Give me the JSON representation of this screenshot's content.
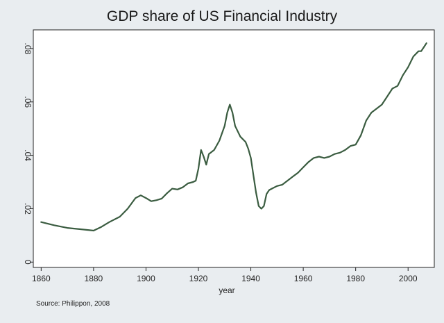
{
  "chart_data": {
    "type": "line",
    "title": "GDP share of US Financial Industry",
    "xlabel": "year",
    "ylabel": "",
    "xlim": [
      1857,
      2010
    ],
    "ylim": [
      -0.002,
      0.087
    ],
    "xticks": [
      1860,
      1880,
      1900,
      1920,
      1940,
      1960,
      1980,
      2000
    ],
    "xtick_labels": [
      "1860",
      "1880",
      "1900",
      "1920",
      "1940",
      "1960",
      "1980",
      "2000"
    ],
    "yticks": [
      0,
      0.02,
      0.04,
      0.06,
      0.08
    ],
    "ytick_labels": [
      "0",
      ".02",
      ".04",
      ".06",
      ".08"
    ],
    "grid": false,
    "line_color": "#3a5c40",
    "series": [
      {
        "x": [
          1860,
          1865,
          1870,
          1875,
          1880,
          1883,
          1886,
          1890,
          1893,
          1896,
          1898,
          1900,
          1902,
          1904,
          1906,
          1908,
          1910,
          1912,
          1914,
          1916,
          1918,
          1919,
          1920,
          1921,
          1922,
          1923,
          1924,
          1926,
          1928,
          1930,
          1931,
          1932,
          1933,
          1934,
          1936,
          1938,
          1939,
          1940,
          1941,
          1942,
          1943,
          1944,
          1945,
          1946,
          1947,
          1948,
          1950,
          1952,
          1954,
          1956,
          1958,
          1960,
          1962,
          1964,
          1966,
          1968,
          1970,
          1972,
          1974,
          1976,
          1978,
          1980,
          1982,
          1984,
          1986,
          1988,
          1990,
          1992,
          1994,
          1996,
          1998,
          2000,
          2002,
          2004,
          2005,
          2006,
          2007
        ],
        "y": [
          0.015,
          0.0138,
          0.0128,
          0.0123,
          0.0118,
          0.0132,
          0.015,
          0.017,
          0.02,
          0.024,
          0.025,
          0.024,
          0.0228,
          0.0232,
          0.0238,
          0.0258,
          0.0275,
          0.0272,
          0.028,
          0.0295,
          0.03,
          0.0305,
          0.035,
          0.042,
          0.0395,
          0.0365,
          0.0405,
          0.042,
          0.0455,
          0.051,
          0.056,
          0.059,
          0.056,
          0.051,
          0.047,
          0.045,
          0.0425,
          0.039,
          0.0325,
          0.026,
          0.021,
          0.02,
          0.021,
          0.0255,
          0.027,
          0.0275,
          0.0285,
          0.029,
          0.0305,
          0.032,
          0.0335,
          0.0355,
          0.0375,
          0.039,
          0.0395,
          0.039,
          0.0395,
          0.0405,
          0.041,
          0.042,
          0.0435,
          0.044,
          0.0475,
          0.053,
          0.056,
          0.0575,
          0.059,
          0.062,
          0.065,
          0.066,
          0.07,
          0.073,
          0.077,
          0.079,
          0.079,
          0.0805,
          0.082
        ]
      }
    ]
  },
  "source_note": "Source: Philippon, 2008"
}
